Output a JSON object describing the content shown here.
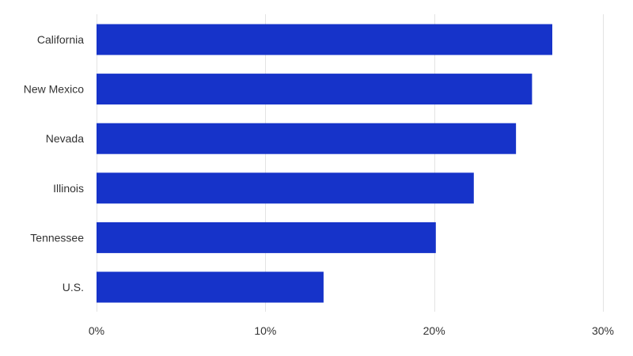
{
  "chart_data": {
    "type": "bar",
    "orientation": "horizontal",
    "title": "",
    "xlabel": "",
    "ylabel": "",
    "categories": [
      "California",
      "New Mexico",
      "Nevada",
      "Illinois",
      "Tennessee",
      "U.S."
    ],
    "values": [
      27.0,
      25.8,
      24.85,
      22.35,
      20.1,
      13.45
    ],
    "unit": "%",
    "xlim": [
      0,
      30
    ],
    "xticks": [
      0,
      10,
      20,
      30
    ],
    "xtick_labels": [
      "0%",
      "10%",
      "20%",
      "30%"
    ],
    "grid": "vertical",
    "legend": "none",
    "bar_color": "#1633c9"
  }
}
